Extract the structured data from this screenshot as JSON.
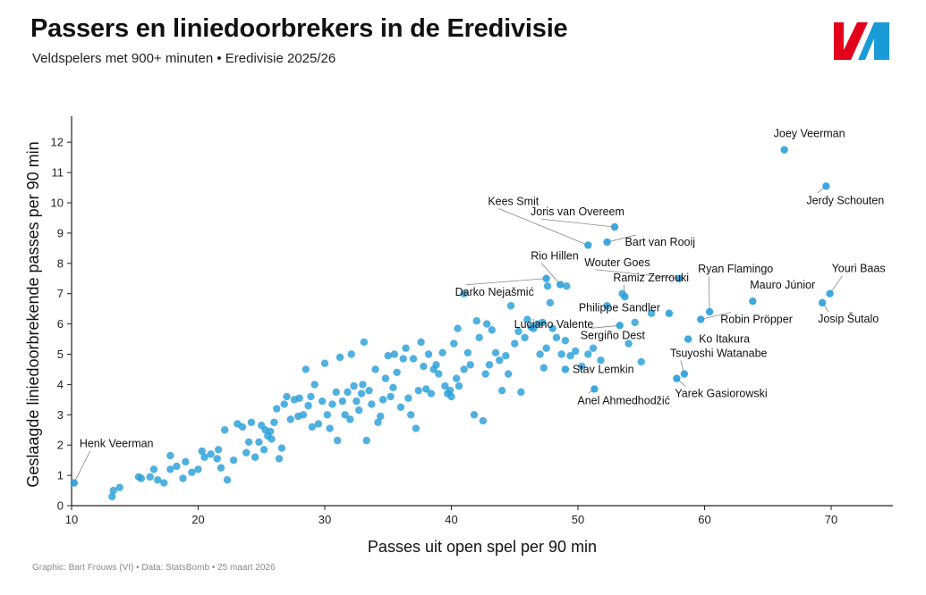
{
  "header": {
    "title": "Passers en liniedoorbrekers in de Eredivisie",
    "subtitle": "Veldspelers met 900+ minuten • Eredivisie 2025/26"
  },
  "footer": {
    "credit": "Graphic: Bart Frouws (VI) • Data: StatsBomb • 25 maart 2026"
  },
  "logo": {
    "icon": "vi-logo-icon",
    "colors": [
      "#e3001b",
      "#1a9ad6"
    ]
  },
  "colors": {
    "point": "#2a9fd8",
    "axis": "#222222",
    "text": "#111111"
  },
  "chart_data": {
    "type": "scatter",
    "title": "Passers en liniedoorbrekers in de Eredivisie",
    "subtitle": "Veldspelers met 900+ minuten • Eredivisie 2025/26",
    "xlabel": "Passes uit open spel per 90 min",
    "ylabel": "Geslaagde liniedoorbrekende passes per 90 min",
    "xlim": [
      10,
      75
    ],
    "ylim": [
      0,
      12.8
    ],
    "xticks": [
      10,
      20,
      30,
      40,
      50,
      60,
      70
    ],
    "yticks": [
      0,
      1,
      2,
      3,
      4,
      5,
      6,
      7,
      8,
      9,
      10,
      11,
      12
    ],
    "grid": false,
    "labeled_points": [
      {
        "name": "Joey Veerman",
        "x": 66.3,
        "y": 11.75
      },
      {
        "name": "Jerdy Schouten",
        "x": 69.6,
        "y": 10.55
      },
      {
        "name": "Joris van Overeem",
        "x": 52.9,
        "y": 9.2
      },
      {
        "name": "Bart van Rooij",
        "x": 52.3,
        "y": 8.7
      },
      {
        "name": "Kees Smit",
        "x": 50.8,
        "y": 8.6
      },
      {
        "name": "Rio Hillen",
        "x": 48.6,
        "y": 7.3
      },
      {
        "name": "Wouter Goes",
        "x": 58.0,
        "y": 7.5
      },
      {
        "name": "Ryan Flamingo",
        "x": 60.4,
        "y": 6.4
      },
      {
        "name": "Youri Baas",
        "x": 69.9,
        "y": 7.0
      },
      {
        "name": "Ramiz Zerrouki",
        "x": 53.7,
        "y": 6.9
      },
      {
        "name": "Darko Nejašmić",
        "x": 47.5,
        "y": 7.5
      },
      {
        "name": "Mauro Júnior",
        "x": 63.8,
        "y": 6.75
      },
      {
        "name": "Philippe Sandler",
        "x": 57.2,
        "y": 6.35
      },
      {
        "name": "Robin Pröpper",
        "x": 59.7,
        "y": 6.15
      },
      {
        "name": "Josip Šutalo",
        "x": 69.3,
        "y": 6.7
      },
      {
        "name": "Luciano Valente",
        "x": 46.3,
        "y": 5.9
      },
      {
        "name": "Sergiño Dest",
        "x": 53.3,
        "y": 5.95
      },
      {
        "name": "Ko Itakura",
        "x": 58.7,
        "y": 5.5
      },
      {
        "name": "Stav Lemkin",
        "x": 49.0,
        "y": 4.5
      },
      {
        "name": "Tsuyoshi Watanabe",
        "x": 58.4,
        "y": 4.35
      },
      {
        "name": "Yarek Gasiorowski",
        "x": 57.8,
        "y": 4.2
      },
      {
        "name": "Anel Ahmedhodžić",
        "x": 51.3,
        "y": 3.85
      },
      {
        "name": "Henk Veerman",
        "x": 10.2,
        "y": 0.75
      }
    ],
    "points": [
      [
        13.2,
        0.3
      ],
      [
        13.3,
        0.5
      ],
      [
        13.8,
        0.6
      ],
      [
        15.3,
        0.95
      ],
      [
        15.5,
        0.9
      ],
      [
        16.2,
        0.95
      ],
      [
        16.5,
        1.2
      ],
      [
        16.8,
        0.85
      ],
      [
        17.3,
        0.75
      ],
      [
        17.8,
        1.65
      ],
      [
        17.8,
        1.2
      ],
      [
        18.3,
        1.3
      ],
      [
        18.8,
        0.9
      ],
      [
        19.0,
        1.45
      ],
      [
        19.5,
        1.1
      ],
      [
        20.0,
        1.2
      ],
      [
        20.3,
        1.8
      ],
      [
        20.5,
        1.6
      ],
      [
        21.0,
        1.7
      ],
      [
        21.5,
        1.55
      ],
      [
        21.6,
        1.85
      ],
      [
        21.8,
        1.25
      ],
      [
        22.1,
        2.5
      ],
      [
        22.3,
        0.85
      ],
      [
        22.8,
        1.5
      ],
      [
        23.1,
        2.7
      ],
      [
        23.5,
        2.6
      ],
      [
        23.8,
        1.75
      ],
      [
        24.0,
        2.1
      ],
      [
        24.2,
        2.75
      ],
      [
        24.5,
        1.6
      ],
      [
        24.8,
        2.1
      ],
      [
        25.0,
        2.65
      ],
      [
        25.2,
        1.85
      ],
      [
        25.3,
        2.5
      ],
      [
        25.5,
        2.3
      ],
      [
        25.7,
        2.45
      ],
      [
        25.8,
        2.2
      ],
      [
        26.0,
        2.75
      ],
      [
        26.2,
        3.2
      ],
      [
        26.4,
        1.55
      ],
      [
        26.6,
        1.9
      ],
      [
        26.8,
        3.35
      ],
      [
        27.0,
        3.6
      ],
      [
        27.3,
        2.85
      ],
      [
        27.6,
        3.5
      ],
      [
        27.9,
        2.95
      ],
      [
        28.0,
        3.55
      ],
      [
        28.3,
        3.0
      ],
      [
        28.5,
        4.5
      ],
      [
        28.7,
        3.3
      ],
      [
        28.9,
        3.6
      ],
      [
        29.0,
        2.6
      ],
      [
        29.2,
        4.0
      ],
      [
        29.5,
        2.7
      ],
      [
        29.8,
        3.45
      ],
      [
        30.0,
        4.7
      ],
      [
        30.2,
        3.0
      ],
      [
        30.4,
        2.55
      ],
      [
        30.6,
        3.35
      ],
      [
        30.9,
        3.75
      ],
      [
        31.0,
        2.15
      ],
      [
        31.2,
        4.9
      ],
      [
        31.4,
        3.45
      ],
      [
        31.6,
        3.0
      ],
      [
        31.8,
        3.75
      ],
      [
        32.0,
        2.85
      ],
      [
        32.1,
        5.0
      ],
      [
        32.3,
        3.95
      ],
      [
        32.5,
        3.45
      ],
      [
        32.7,
        3.15
      ],
      [
        32.9,
        3.7
      ],
      [
        33.0,
        4.0
      ],
      [
        33.1,
        5.4
      ],
      [
        33.3,
        2.15
      ],
      [
        33.5,
        3.8
      ],
      [
        33.7,
        3.35
      ],
      [
        34.0,
        4.5
      ],
      [
        34.2,
        2.75
      ],
      [
        34.4,
        2.95
      ],
      [
        34.6,
        3.5
      ],
      [
        34.8,
        4.2
      ],
      [
        35.0,
        4.95
      ],
      [
        35.2,
        3.6
      ],
      [
        35.4,
        3.9
      ],
      [
        35.5,
        5.0
      ],
      [
        35.7,
        4.4
      ],
      [
        36.0,
        3.25
      ],
      [
        36.2,
        4.85
      ],
      [
        36.4,
        5.2
      ],
      [
        36.6,
        3.55
      ],
      [
        36.8,
        3.0
      ],
      [
        37.0,
        4.85
      ],
      [
        37.2,
        2.55
      ],
      [
        37.4,
        3.8
      ],
      [
        37.6,
        5.4
      ],
      [
        37.8,
        4.6
      ],
      [
        38.0,
        3.85
      ],
      [
        38.2,
        5.0
      ],
      [
        38.4,
        3.7
      ],
      [
        38.6,
        4.5
      ],
      [
        38.8,
        4.65
      ],
      [
        39.0,
        4.35
      ],
      [
        39.3,
        5.05
      ],
      [
        39.5,
        3.95
      ],
      [
        39.7,
        3.7
      ],
      [
        39.9,
        3.8
      ],
      [
        40.0,
        3.6
      ],
      [
        40.2,
        5.35
      ],
      [
        40.4,
        4.2
      ],
      [
        40.6,
        3.95
      ],
      [
        41.0,
        4.5
      ],
      [
        41.3,
        5.05
      ],
      [
        41.5,
        4.65
      ],
      [
        41.8,
        3.0
      ],
      [
        42.0,
        6.1
      ],
      [
        42.2,
        5.55
      ],
      [
        42.5,
        2.8
      ],
      [
        42.7,
        4.35
      ],
      [
        43.0,
        4.65
      ],
      [
        43.2,
        5.8
      ],
      [
        43.5,
        5.05
      ],
      [
        43.8,
        4.8
      ],
      [
        44.0,
        3.8
      ],
      [
        44.3,
        4.95
      ],
      [
        44.5,
        4.35
      ],
      [
        44.7,
        6.6
      ],
      [
        45.0,
        5.35
      ],
      [
        45.3,
        5.75
      ],
      [
        45.5,
        3.75
      ],
      [
        45.8,
        5.55
      ],
      [
        46.0,
        6.15
      ],
      [
        46.5,
        5.85
      ],
      [
        46.8,
        6.0
      ],
      [
        47.0,
        5.0
      ],
      [
        47.3,
        4.55
      ],
      [
        47.5,
        5.2
      ],
      [
        47.8,
        6.7
      ],
      [
        48.0,
        5.85
      ],
      [
        48.3,
        5.55
      ],
      [
        48.7,
        5.0
      ],
      [
        49.0,
        5.45
      ],
      [
        49.4,
        4.95
      ],
      [
        49.8,
        5.1
      ],
      [
        50.3,
        4.6
      ],
      [
        50.8,
        5.0
      ],
      [
        51.2,
        5.2
      ],
      [
        51.8,
        4.8
      ],
      [
        52.3,
        6.6
      ],
      [
        54.0,
        5.35
      ],
      [
        55.0,
        4.75
      ],
      [
        47.2,
        6.05
      ],
      [
        49.1,
        7.25
      ],
      [
        47.6,
        7.25
      ],
      [
        53.5,
        7.0
      ],
      [
        54.5,
        6.05
      ],
      [
        55.8,
        6.35
      ],
      [
        42.8,
        6.0
      ],
      [
        41.0,
        7.0
      ],
      [
        40.5,
        5.85
      ]
    ]
  }
}
